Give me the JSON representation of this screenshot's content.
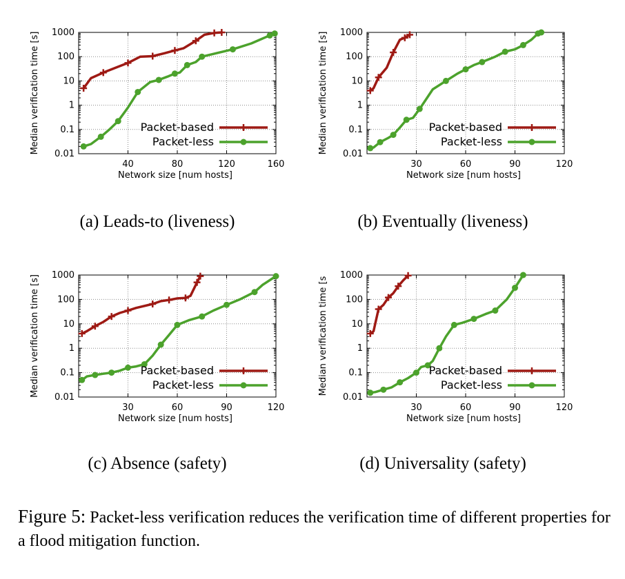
{
  "colors": {
    "packet_based": "#9e1a14",
    "packet_less": "#4ca22c",
    "grid": "#8a8a8a",
    "axis": "#000000"
  },
  "caption": {
    "label": "Figure 5:",
    "text": " Packet-less verification reduces the verification time of different properties for a flood mitigation function."
  },
  "chart_data": [
    {
      "id": "a",
      "type": "line",
      "subcaption": "(a) Leads-to (liveness)",
      "xlabel": "Network size [num hosts]",
      "ylabel": "Median verification time [s]",
      "xlim": [
        0,
        160
      ],
      "xticks": [
        40,
        80,
        120,
        160
      ],
      "ylim": [
        0.01,
        1000
      ],
      "yscale": "log",
      "yticks": [
        0.01,
        0.1,
        1,
        10,
        100,
        1000
      ],
      "ytick_labels": [
        "0.01",
        "0.1",
        "1",
        "10",
        "100",
        "1000"
      ],
      "grid": true,
      "legend_position": "bottom-right",
      "series": [
        {
          "name": "Packet-based",
          "marker": "plus",
          "x": [
            4,
            10,
            20,
            30,
            40,
            50,
            60,
            70,
            78,
            85,
            95,
            102,
            110,
            116
          ],
          "y": [
            5,
            13,
            22,
            35,
            55,
            100,
            105,
            140,
            180,
            220,
            450,
            800,
            950,
            1000
          ]
        },
        {
          "name": "Packet-less",
          "marker": "circle",
          "x": [
            4,
            10,
            18,
            25,
            32,
            40,
            48,
            58,
            65,
            72,
            78,
            82,
            88,
            95,
            100,
            112,
            125,
            140,
            155,
            159
          ],
          "y": [
            0.02,
            0.025,
            0.05,
            0.1,
            0.22,
            0.8,
            3.5,
            9,
            11,
            15,
            20,
            22,
            45,
            60,
            100,
            140,
            200,
            350,
            750,
            900
          ]
        }
      ]
    },
    {
      "id": "b",
      "type": "line",
      "subcaption": "(b) Eventually (liveness)",
      "xlabel": "Network size [num hosts]",
      "ylabel": "Median verification time [s]",
      "xlim": [
        0,
        120
      ],
      "xticks": [
        30,
        60,
        90,
        120
      ],
      "ylim": [
        0.01,
        1000
      ],
      "yscale": "log",
      "yticks": [
        0.01,
        0.1,
        1,
        10,
        100,
        1000
      ],
      "ytick_labels": [
        "0.01",
        "0.1",
        "1",
        "10",
        "100",
        "1000"
      ],
      "grid": true,
      "legend_position": "bottom-right",
      "series": [
        {
          "name": "Packet-based",
          "marker": "plus",
          "x": [
            2,
            4,
            7,
            12,
            16,
            20,
            23,
            26
          ],
          "y": [
            4,
            5,
            14,
            35,
            150,
            500,
            600,
            800
          ]
        },
        {
          "name": "Packet-less",
          "marker": "circle",
          "x": [
            2,
            4,
            8,
            13,
            16,
            20,
            24,
            28,
            32,
            40,
            48,
            55,
            60,
            65,
            70,
            78,
            84,
            90,
            95,
            100,
            104,
            106
          ],
          "y": [
            0.017,
            0.018,
            0.03,
            0.045,
            0.06,
            0.12,
            0.25,
            0.3,
            0.7,
            4.5,
            10,
            20,
            30,
            45,
            60,
            100,
            160,
            200,
            300,
            500,
            900,
            1000
          ]
        }
      ]
    },
    {
      "id": "c",
      "type": "line",
      "subcaption": "(c) Absence (safety)",
      "xlabel": "Network size [num hosts]",
      "ylabel": "Median verification time [s]",
      "xlim": [
        0,
        120
      ],
      "xticks": [
        30,
        60,
        90,
        120
      ],
      "ylim": [
        0.01,
        1000
      ],
      "yscale": "log",
      "yticks": [
        0.01,
        0.1,
        1,
        10,
        100,
        1000
      ],
      "ytick_labels": [
        "0.01",
        "0.1",
        "1",
        "10",
        "100",
        "1000"
      ],
      "grid": true,
      "legend_position": "bottom-right",
      "series": [
        {
          "name": "Packet-based",
          "marker": "plus",
          "x": [
            2,
            5,
            10,
            15,
            20,
            25,
            30,
            35,
            45,
            50,
            55,
            60,
            65,
            68,
            72,
            74
          ],
          "y": [
            4,
            5,
            8,
            12,
            20,
            28,
            35,
            45,
            65,
            85,
            95,
            110,
            115,
            140,
            500,
            900
          ]
        },
        {
          "name": "Packet-less",
          "marker": "circle",
          "x": [
            2,
            5,
            10,
            15,
            20,
            25,
            30,
            35,
            40,
            45,
            50,
            55,
            60,
            67,
            75,
            82,
            90,
            98,
            107,
            112,
            120
          ],
          "y": [
            0.05,
            0.07,
            0.08,
            0.09,
            0.1,
            0.12,
            0.16,
            0.18,
            0.22,
            0.5,
            1.4,
            3.5,
            9,
            14,
            20,
            35,
            60,
            100,
            200,
            400,
            900
          ]
        }
      ]
    },
    {
      "id": "d",
      "type": "line",
      "subcaption": "(d) Universality (safety)",
      "xlabel": "Network size [num hosts]",
      "ylabel": "Median verification time [s",
      "xlim": [
        0,
        120
      ],
      "xticks": [
        30,
        60,
        90,
        120
      ],
      "ylim": [
        0.01,
        1000
      ],
      "yscale": "log",
      "yticks": [
        0.01,
        0.1,
        1,
        10,
        100,
        1000
      ],
      "ytick_labels": [
        "0.01",
        "0.1",
        "1",
        "10",
        "100",
        "1000"
      ],
      "grid": true,
      "legend_position": "bottom-right",
      "series": [
        {
          "name": "Packet-based",
          "marker": "plus",
          "x": [
            2,
            4,
            7,
            10,
            13,
            16,
            19,
            22,
            25
          ],
          "y": [
            4,
            5,
            40,
            60,
            120,
            180,
            350,
            600,
            950
          ]
        },
        {
          "name": "Packet-less",
          "marker": "circle",
          "x": [
            2,
            5,
            10,
            15,
            20,
            25,
            30,
            33,
            37,
            40,
            44,
            48,
            53,
            58,
            65,
            72,
            78,
            85,
            90,
            95
          ],
          "y": [
            0.015,
            0.016,
            0.02,
            0.025,
            0.04,
            0.06,
            0.1,
            0.17,
            0.2,
            0.3,
            1,
            3,
            9,
            11,
            16,
            25,
            35,
            100,
            300,
            1000
          ]
        }
      ]
    }
  ]
}
